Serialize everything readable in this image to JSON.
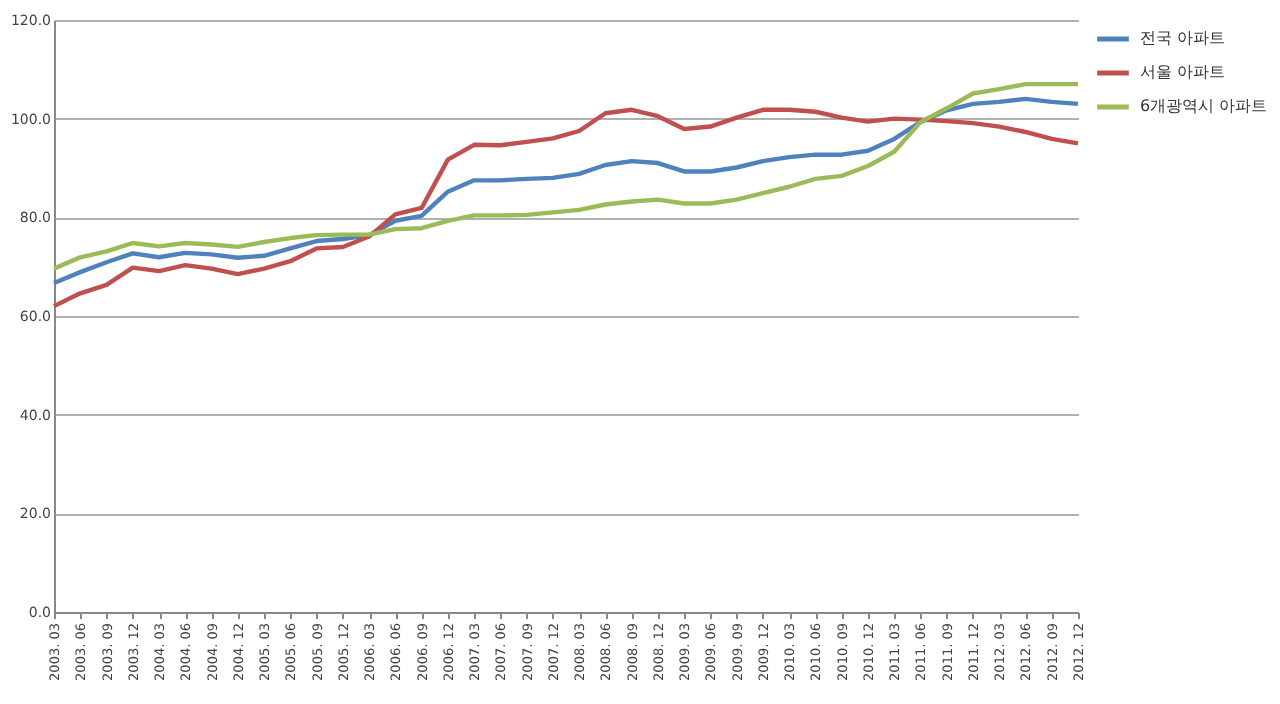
{
  "chart_data": {
    "type": "line",
    "categories": [
      "2003. 03",
      "2003. 06",
      "2003. 09",
      "2003. 12",
      "2004. 03",
      "2004. 06",
      "2004. 09",
      "2004. 12",
      "2005. 03",
      "2005. 06",
      "2005. 09",
      "2005. 12",
      "2006. 03",
      "2006. 06",
      "2006. 09",
      "2006. 12",
      "2007. 03",
      "2007. 06",
      "2007. 09",
      "2007. 12",
      "2008. 03",
      "2008. 06",
      "2008. 09",
      "2008. 12",
      "2009. 03",
      "2009. 06",
      "2009. 09",
      "2009. 12",
      "2010. 03",
      "2010. 06",
      "2010. 09",
      "2010. 12",
      "2011. 03",
      "2011. 06",
      "2011. 09",
      "2011. 12",
      "2012. 03",
      "2012. 06",
      "2012. 09",
      "2012. 12"
    ],
    "series": [
      {
        "name": "전국 아파트",
        "color": "#4f81bd",
        "values": [
          66.7,
          68.9,
          70.9,
          72.7,
          71.9,
          72.8,
          72.5,
          71.8,
          72.2,
          73.7,
          75.2,
          75.6,
          76.4,
          79.3,
          80.3,
          85.2,
          87.5,
          87.5,
          87.8,
          88.0,
          88.8,
          90.6,
          91.4,
          91.0,
          89.3,
          89.3,
          90.1,
          91.4,
          92.2,
          92.7,
          92.7,
          93.5,
          95.9,
          99.3,
          101.7,
          103.0,
          103.4,
          104.0,
          103.4,
          103.0
        ]
      },
      {
        "name": "서울 아파트",
        "color": "#c0504d",
        "values": [
          62.0,
          64.6,
          66.3,
          69.8,
          69.1,
          70.3,
          69.6,
          68.5,
          69.6,
          71.1,
          73.7,
          74.0,
          76.1,
          80.6,
          81.9,
          91.7,
          94.7,
          94.6,
          95.3,
          96.0,
          97.5,
          101.1,
          101.8,
          100.5,
          97.9,
          98.4,
          100.2,
          101.8,
          101.8,
          101.4,
          100.2,
          99.4,
          100.0,
          99.8,
          99.5,
          99.1,
          98.4,
          97.3,
          95.9,
          95.0
        ]
      },
      {
        "name": "6개광역시 아파트",
        "color": "#9bbb59",
        "values": [
          69.6,
          71.9,
          73.1,
          74.8,
          74.1,
          74.8,
          74.5,
          74.0,
          75.0,
          75.8,
          76.4,
          76.5,
          76.5,
          77.6,
          77.8,
          79.3,
          80.4,
          80.4,
          80.5,
          81.0,
          81.5,
          82.6,
          83.2,
          83.6,
          82.8,
          82.8,
          83.6,
          84.9,
          86.2,
          87.8,
          88.4,
          90.4,
          93.3,
          99.3,
          102.1,
          105.1,
          106.0,
          107.0,
          107.0,
          107.0
        ]
      }
    ],
    "ylim": [
      0,
      120
    ],
    "yticks": [
      {
        "value": 0,
        "label": "0.0"
      },
      {
        "value": 20,
        "label": "20.0"
      },
      {
        "value": 40,
        "label": "40.0"
      },
      {
        "value": 60,
        "label": "60.0"
      },
      {
        "value": 80,
        "label": "80.0"
      },
      {
        "value": 100,
        "label": "100.0"
      },
      {
        "value": 120,
        "label": "120.0"
      }
    ],
    "grid": "y",
    "legend": "right",
    "marker": "none",
    "line_style": "solid"
  }
}
